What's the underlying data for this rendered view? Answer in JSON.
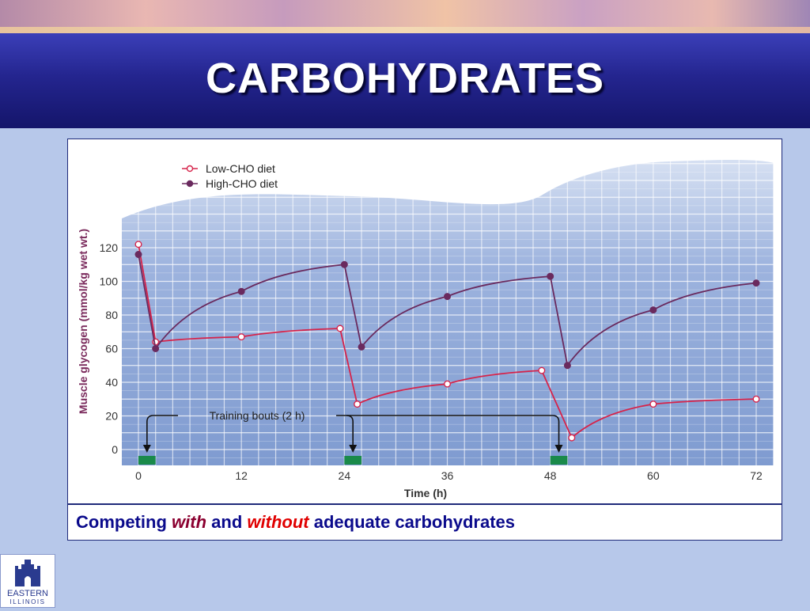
{
  "slide": {
    "title": "CARBOHYDRATES"
  },
  "caption": {
    "part1": "Competing",
    "with": "with",
    "part2": "and",
    "without": "without",
    "part3": "adequate carbohydrates"
  },
  "logo": {
    "text_main": "EASTERN",
    "text_sub": "ILLINOIS"
  },
  "colors": {
    "low_cho": "#d6234a",
    "high_cho": "#6a2a5e",
    "grid_bg": "#8ea7d6",
    "training_bar": "#1a8a4a"
  },
  "chart_data": {
    "type": "line",
    "title": "",
    "xlabel": "Time (h)",
    "ylabel": "Muscle glycogen (mmol/kg wet wt.)",
    "xlim": [
      0,
      72
    ],
    "ylim": [
      0,
      120
    ],
    "xticks": [
      0,
      12,
      24,
      36,
      48,
      60,
      72
    ],
    "yticks": [
      0,
      20,
      40,
      60,
      80,
      100,
      120
    ],
    "legend_position": "top-left",
    "series": [
      {
        "name": "Low-CHO diet",
        "marker": "open-circle",
        "points": [
          [
            0,
            122
          ],
          [
            2,
            64
          ],
          [
            12,
            67
          ],
          [
            23.5,
            72
          ],
          [
            25.5,
            27
          ],
          [
            36,
            39
          ],
          [
            47,
            47
          ],
          [
            50.5,
            7
          ],
          [
            60,
            27
          ],
          [
            72,
            30
          ]
        ]
      },
      {
        "name": "High-CHO diet",
        "marker": "filled-circle",
        "points": [
          [
            0,
            116
          ],
          [
            2,
            60
          ],
          [
            12,
            94
          ],
          [
            24,
            110
          ],
          [
            26,
            61
          ],
          [
            36,
            91
          ],
          [
            48,
            103
          ],
          [
            50,
            50
          ],
          [
            60,
            83
          ],
          [
            72,
            99
          ]
        ]
      }
    ],
    "annotations": {
      "training_label": "Training bouts (2 h)",
      "training_starts": [
        0,
        24,
        48
      ],
      "training_duration": 2
    }
  }
}
